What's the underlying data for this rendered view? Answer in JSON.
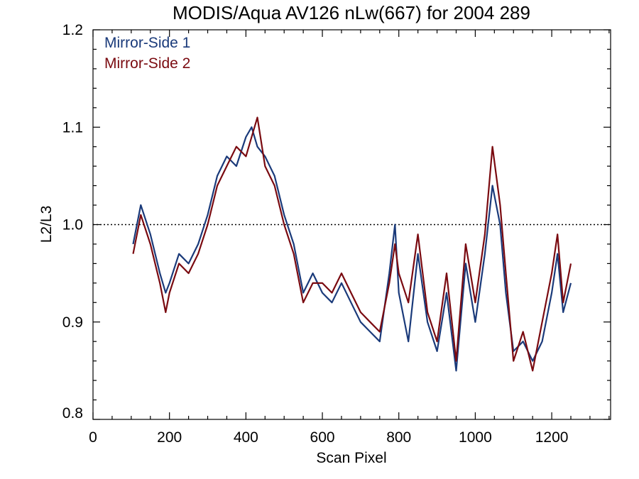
{
  "chart_data": {
    "type": "line",
    "title": "MODIS/Aqua AV126 nLw(667) for 2004 289",
    "xlabel": "Scan Pixel",
    "ylabel": "L2/L3",
    "xlim": [
      0,
      1354
    ],
    "ylim": [
      0.8,
      1.2
    ],
    "x_ticks": [
      "0",
      "200",
      "400",
      "600",
      "800",
      "1000",
      "1200"
    ],
    "y_ticks": [
      "0.8",
      "0.9",
      "1.0",
      "1.1",
      "1.2"
    ],
    "reference_line": {
      "y": 1.0,
      "style": "dotted"
    },
    "legend": {
      "placement": "top-left"
    },
    "colors": {
      "mirror_side_1": "#1a3a7a",
      "mirror_side_2": "#7a0a10"
    },
    "x": [
      105,
      125,
      150,
      175,
      190,
      200,
      225,
      250,
      275,
      300,
      325,
      350,
      375,
      400,
      415,
      430,
      450,
      475,
      500,
      525,
      550,
      575,
      600,
      625,
      650,
      675,
      700,
      725,
      750,
      775,
      790,
      800,
      825,
      850,
      875,
      900,
      925,
      950,
      975,
      1000,
      1025,
      1045,
      1065,
      1080,
      1100,
      1125,
      1150,
      1175,
      1200,
      1215,
      1230,
      1250
    ],
    "series": [
      {
        "name": "Mirror-Side 1",
        "color": "#1a3a7a",
        "values": [
          0.98,
          1.02,
          0.99,
          0.95,
          0.93,
          0.94,
          0.97,
          0.96,
          0.98,
          1.01,
          1.05,
          1.07,
          1.06,
          1.09,
          1.1,
          1.08,
          1.07,
          1.05,
          1.01,
          0.98,
          0.93,
          0.95,
          0.93,
          0.92,
          0.94,
          0.92,
          0.9,
          0.89,
          0.88,
          0.95,
          1.0,
          0.93,
          0.88,
          0.97,
          0.9,
          0.87,
          0.93,
          0.85,
          0.96,
          0.9,
          0.97,
          1.04,
          1.0,
          0.93,
          0.87,
          0.88,
          0.86,
          0.88,
          0.93,
          0.97,
          0.91,
          0.94
        ]
      },
      {
        "name": "Mirror-Side 2",
        "color": "#7a0a10",
        "values": [
          0.97,
          1.01,
          0.98,
          0.94,
          0.91,
          0.93,
          0.96,
          0.95,
          0.97,
          1.0,
          1.04,
          1.06,
          1.08,
          1.07,
          1.09,
          1.11,
          1.06,
          1.04,
          1.0,
          0.97,
          0.92,
          0.94,
          0.94,
          0.93,
          0.95,
          0.93,
          0.91,
          0.9,
          0.89,
          0.94,
          0.98,
          0.95,
          0.92,
          0.99,
          0.91,
          0.88,
          0.95,
          0.86,
          0.98,
          0.92,
          0.99,
          1.08,
          1.02,
          0.95,
          0.86,
          0.89,
          0.85,
          0.9,
          0.95,
          0.99,
          0.92,
          0.96
        ]
      }
    ]
  }
}
